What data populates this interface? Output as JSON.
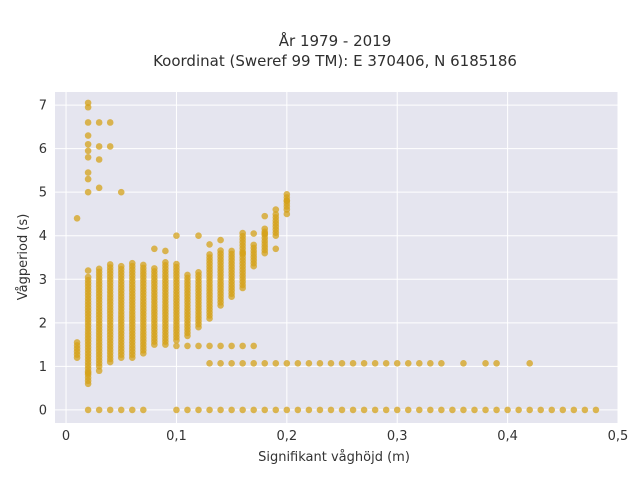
{
  "chart_data": {
    "type": "scatter",
    "title": "År 1979 - 2019",
    "subtitle": "Koordinat (Sweref 99 TM): E 370406, N 6185186",
    "xlabel": "Signifikant våghöjd (m)",
    "ylabel": "Vågperiod (s)",
    "xlim": [
      -0.01,
      0.5
    ],
    "ylim": [
      -0.3,
      7.3
    ],
    "xticks": [
      0,
      0.1,
      0.2,
      0.3,
      0.4,
      0.5
    ],
    "xtick_labels": [
      "0",
      "0,1",
      "0,2",
      "0,3",
      "0,4",
      "0,5"
    ],
    "yticks": [
      0,
      1,
      2,
      3,
      4,
      5,
      6,
      7
    ],
    "ytick_labels": [
      "0",
      "1",
      "2",
      "3",
      "4",
      "5",
      "6",
      "7"
    ],
    "grid": true,
    "colors": {
      "marker": "#d4a21a",
      "plot_bg": "#e5e5ef",
      "grid": "#ffffff"
    },
    "columns": [
      {
        "x": 0.01,
        "y_min": 1.2,
        "y_max": 1.6
      },
      {
        "x": 0.02,
        "y_min": 0.6,
        "y_max": 3.1
      },
      {
        "x": 0.03,
        "y_min": 1.0,
        "y_max": 3.3
      },
      {
        "x": 0.04,
        "y_min": 1.1,
        "y_max": 3.4
      },
      {
        "x": 0.05,
        "y_min": 1.2,
        "y_max": 3.35
      },
      {
        "x": 0.06,
        "y_min": 1.2,
        "y_max": 3.4
      },
      {
        "x": 0.07,
        "y_min": 1.3,
        "y_max": 3.35
      },
      {
        "x": 0.08,
        "y_min": 1.5,
        "y_max": 3.3
      },
      {
        "x": 0.09,
        "y_min": 1.5,
        "y_max": 3.4
      },
      {
        "x": 0.1,
        "y_min": 1.6,
        "y_max": 3.4
      },
      {
        "x": 0.11,
        "y_min": 1.7,
        "y_max": 3.1
      },
      {
        "x": 0.12,
        "y_min": 1.9,
        "y_max": 3.2
      },
      {
        "x": 0.13,
        "y_min": 2.1,
        "y_max": 3.6
      },
      {
        "x": 0.14,
        "y_min": 2.4,
        "y_max": 3.7
      },
      {
        "x": 0.15,
        "y_min": 2.6,
        "y_max": 3.7
      },
      {
        "x": 0.16,
        "y_min": 2.8,
        "y_max": 4.1
      },
      {
        "x": 0.17,
        "y_min": 3.3,
        "y_max": 3.8
      },
      {
        "x": 0.18,
        "y_min": 3.6,
        "y_max": 4.2
      },
      {
        "x": 0.19,
        "y_min": 4.0,
        "y_max": 4.5
      },
      {
        "x": 0.2,
        "y_min": 4.6,
        "y_max": 4.95
      }
    ],
    "outliers": [
      [
        0.01,
        4.4
      ],
      [
        0.02,
        7.05
      ],
      [
        0.02,
        6.95
      ],
      [
        0.02,
        6.6
      ],
      [
        0.02,
        6.3
      ],
      [
        0.02,
        6.1
      ],
      [
        0.02,
        5.95
      ],
      [
        0.02,
        5.8
      ],
      [
        0.02,
        5.45
      ],
      [
        0.02,
        5.3
      ],
      [
        0.02,
        5.0
      ],
      [
        0.03,
        6.6
      ],
      [
        0.03,
        6.05
      ],
      [
        0.03,
        5.75
      ],
      [
        0.03,
        5.1
      ],
      [
        0.04,
        6.6
      ],
      [
        0.04,
        6.05
      ],
      [
        0.05,
        5.0
      ],
      [
        0.08,
        3.7
      ],
      [
        0.09,
        3.65
      ],
      [
        0.1,
        4.0
      ],
      [
        0.12,
        4.0
      ],
      [
        0.13,
        3.8
      ],
      [
        0.14,
        3.9
      ],
      [
        0.16,
        3.6
      ],
      [
        0.17,
        4.05
      ],
      [
        0.18,
        4.05
      ],
      [
        0.18,
        4.45
      ],
      [
        0.19,
        3.7
      ],
      [
        0.19,
        4.6
      ],
      [
        0.2,
        4.5
      ],
      [
        0.2,
        4.8
      ],
      [
        0.02,
        0.85
      ],
      [
        0.03,
        0.9
      ],
      [
        0.02,
        3.2
      ]
    ],
    "band_1_5": [
      0.1,
      0.11,
      0.12,
      0.13,
      0.14,
      0.15,
      0.16,
      0.17
    ],
    "band_1_2": [
      0.13,
      0.14,
      0.15,
      0.16,
      0.17,
      0.18,
      0.19
    ],
    "band_1": [
      0.2,
      0.21,
      0.22,
      0.23,
      0.24,
      0.25,
      0.26,
      0.27,
      0.28,
      0.29,
      0.3,
      0.31,
      0.32,
      0.33,
      0.34,
      0.36,
      0.38,
      0.39,
      0.42
    ],
    "band_1_y": 1.07,
    "band_0": [
      0.02,
      0.03,
      0.04,
      0.05,
      0.06,
      0.07,
      0.1,
      0.11,
      0.12,
      0.13,
      0.14,
      0.15,
      0.16,
      0.17,
      0.18,
      0.19,
      0.2,
      0.21,
      0.22,
      0.23,
      0.24,
      0.25,
      0.26,
      0.27,
      0.28,
      0.29,
      0.3,
      0.31,
      0.32,
      0.33,
      0.34,
      0.35,
      0.36,
      0.37,
      0.38,
      0.39,
      0.4,
      0.41,
      0.42,
      0.43,
      0.44,
      0.45,
      0.46,
      0.47,
      0.48
    ]
  }
}
